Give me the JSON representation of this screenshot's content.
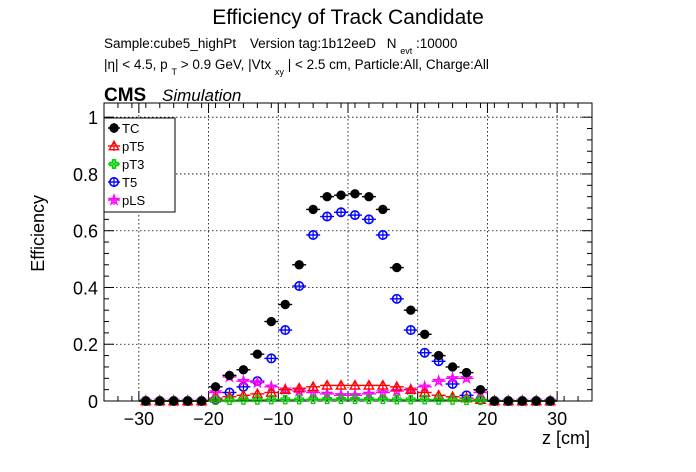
{
  "chart_data": {
    "type": "scatter",
    "title": "Efficiency of Track Candidate",
    "subtitle_line1": {
      "sample": "Sample:cube5_highPt",
      "version": "Version tag:1b12eeD",
      "nevt_label": "N",
      "nevt_sub": "evt",
      "nevt_value": ":10000"
    },
    "subtitle_line2": {
      "eta": "|η| < 4.5, p",
      "pt_sub": "T",
      "pt_rest": " > 0.9 GeV, |Vtx",
      "vtx_sub": "xy",
      "rest": "| < 2.5 cm, Particle:All, Charge:All"
    },
    "cms_label": "CMS",
    "cms_extra": "Simulation",
    "xlabel": "z [cm]",
    "ylabel": "Efficiency",
    "xlim": [
      -35,
      35
    ],
    "ylim": [
      0,
      1.05
    ],
    "x_ticks": [
      -30,
      -20,
      -10,
      0,
      10,
      20,
      30
    ],
    "y_ticks": [
      0,
      0.2,
      0.4,
      0.6,
      0.8,
      1
    ],
    "y_tick_labels": [
      "0",
      "0.2",
      "0.4",
      "0.6",
      "0.8",
      "1"
    ],
    "grid": true,
    "legend_position": "top-left",
    "x": [
      -29,
      -27,
      -25,
      -23,
      -21,
      -19,
      -17,
      -15,
      -13,
      -11,
      -9,
      -7,
      -5,
      -3,
      -1,
      1,
      3,
      5,
      7,
      9,
      11,
      13,
      15,
      17,
      19,
      21,
      23,
      25,
      27,
      29
    ],
    "series": [
      {
        "name": "TC",
        "color": "#000000",
        "marker": "filled-circle",
        "values": [
          0,
          0,
          0,
          0,
          0,
          0.05,
          0.09,
          0.11,
          0.165,
          0.28,
          0.34,
          0.48,
          0.675,
          0.72,
          0.725,
          0.73,
          0.72,
          0.675,
          0.47,
          0.32,
          0.235,
          0.16,
          0.12,
          0.1,
          0.04,
          0,
          0,
          0,
          0,
          0
        ]
      },
      {
        "name": "pT5",
        "color": "#ff0000",
        "marker": "open-triangle",
        "values": [
          0,
          0,
          0,
          0,
          0,
          0.01,
          0.015,
          0.02,
          0.025,
          0.03,
          0.04,
          0.045,
          0.05,
          0.055,
          0.055,
          0.055,
          0.055,
          0.055,
          0.05,
          0.04,
          0.03,
          0.02,
          0.015,
          0.01,
          0.005,
          0,
          0,
          0,
          0,
          0
        ]
      },
      {
        "name": "pT3",
        "color": "#00cc00",
        "marker": "open-cross",
        "values": [
          0,
          0,
          0,
          0,
          0,
          0.003,
          0.003,
          0.004,
          0.004,
          0.005,
          0.005,
          0.005,
          0.006,
          0.006,
          0.006,
          0.006,
          0.006,
          0.006,
          0.005,
          0.005,
          0.005,
          0.004,
          0.004,
          0.003,
          0.003,
          0,
          0,
          0,
          0,
          0
        ]
      },
      {
        "name": "T5",
        "color": "#0000ff",
        "marker": "open-circle",
        "values": [
          0,
          0,
          0,
          0,
          0,
          0.005,
          0.03,
          0.05,
          0.07,
          0.15,
          0.25,
          0.405,
          0.585,
          0.65,
          0.665,
          0.655,
          0.64,
          0.585,
          0.36,
          0.25,
          0.17,
          0.14,
          0.06,
          0.02,
          0.005,
          0,
          0,
          0,
          0,
          0
        ]
      },
      {
        "name": "pLS",
        "color": "#ff00ff",
        "marker": "open-star",
        "values": [
          0,
          0,
          0,
          0,
          0,
          0.03,
          0.085,
          0.07,
          0.065,
          0.05,
          0.04,
          0.035,
          0.03,
          0.025,
          0.02,
          0.02,
          0.025,
          0.03,
          0.035,
          0.04,
          0.05,
          0.07,
          0.08,
          0.08,
          0.03,
          0,
          0,
          0,
          0,
          0
        ]
      }
    ]
  }
}
